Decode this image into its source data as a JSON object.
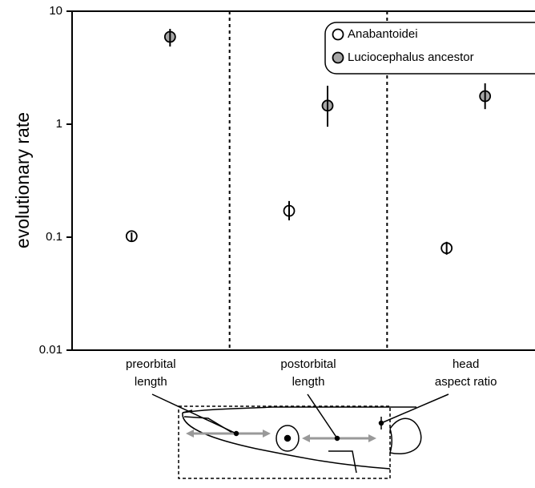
{
  "chart_data": {
    "type": "dot-errorbar",
    "ylabel": "evolutionary rate",
    "log_scale": true,
    "ylim": [
      0.01,
      10
    ],
    "yticks": [
      0.01,
      0.1,
      1,
      10
    ],
    "categories": [
      [
        "preorbital",
        "length"
      ],
      [
        "postorbital",
        "length"
      ],
      [
        "head",
        "aspect ratio"
      ]
    ],
    "series": [
      {
        "name": "Anabantoidei",
        "color": "#ffffff",
        "values": [
          0.102,
          0.171,
          0.08
        ],
        "lower": [
          0.092,
          0.141,
          0.07
        ],
        "upper": [
          0.11,
          0.209,
          0.091
        ]
      },
      {
        "name": "Luciocephalus ancestor",
        "color": "#a6a6a6",
        "values": [
          5.93,
          1.46,
          1.77
        ],
        "lower": [
          4.87,
          0.95,
          1.36
        ],
        "upper": [
          6.98,
          2.19,
          2.3
        ]
      }
    ]
  }
}
